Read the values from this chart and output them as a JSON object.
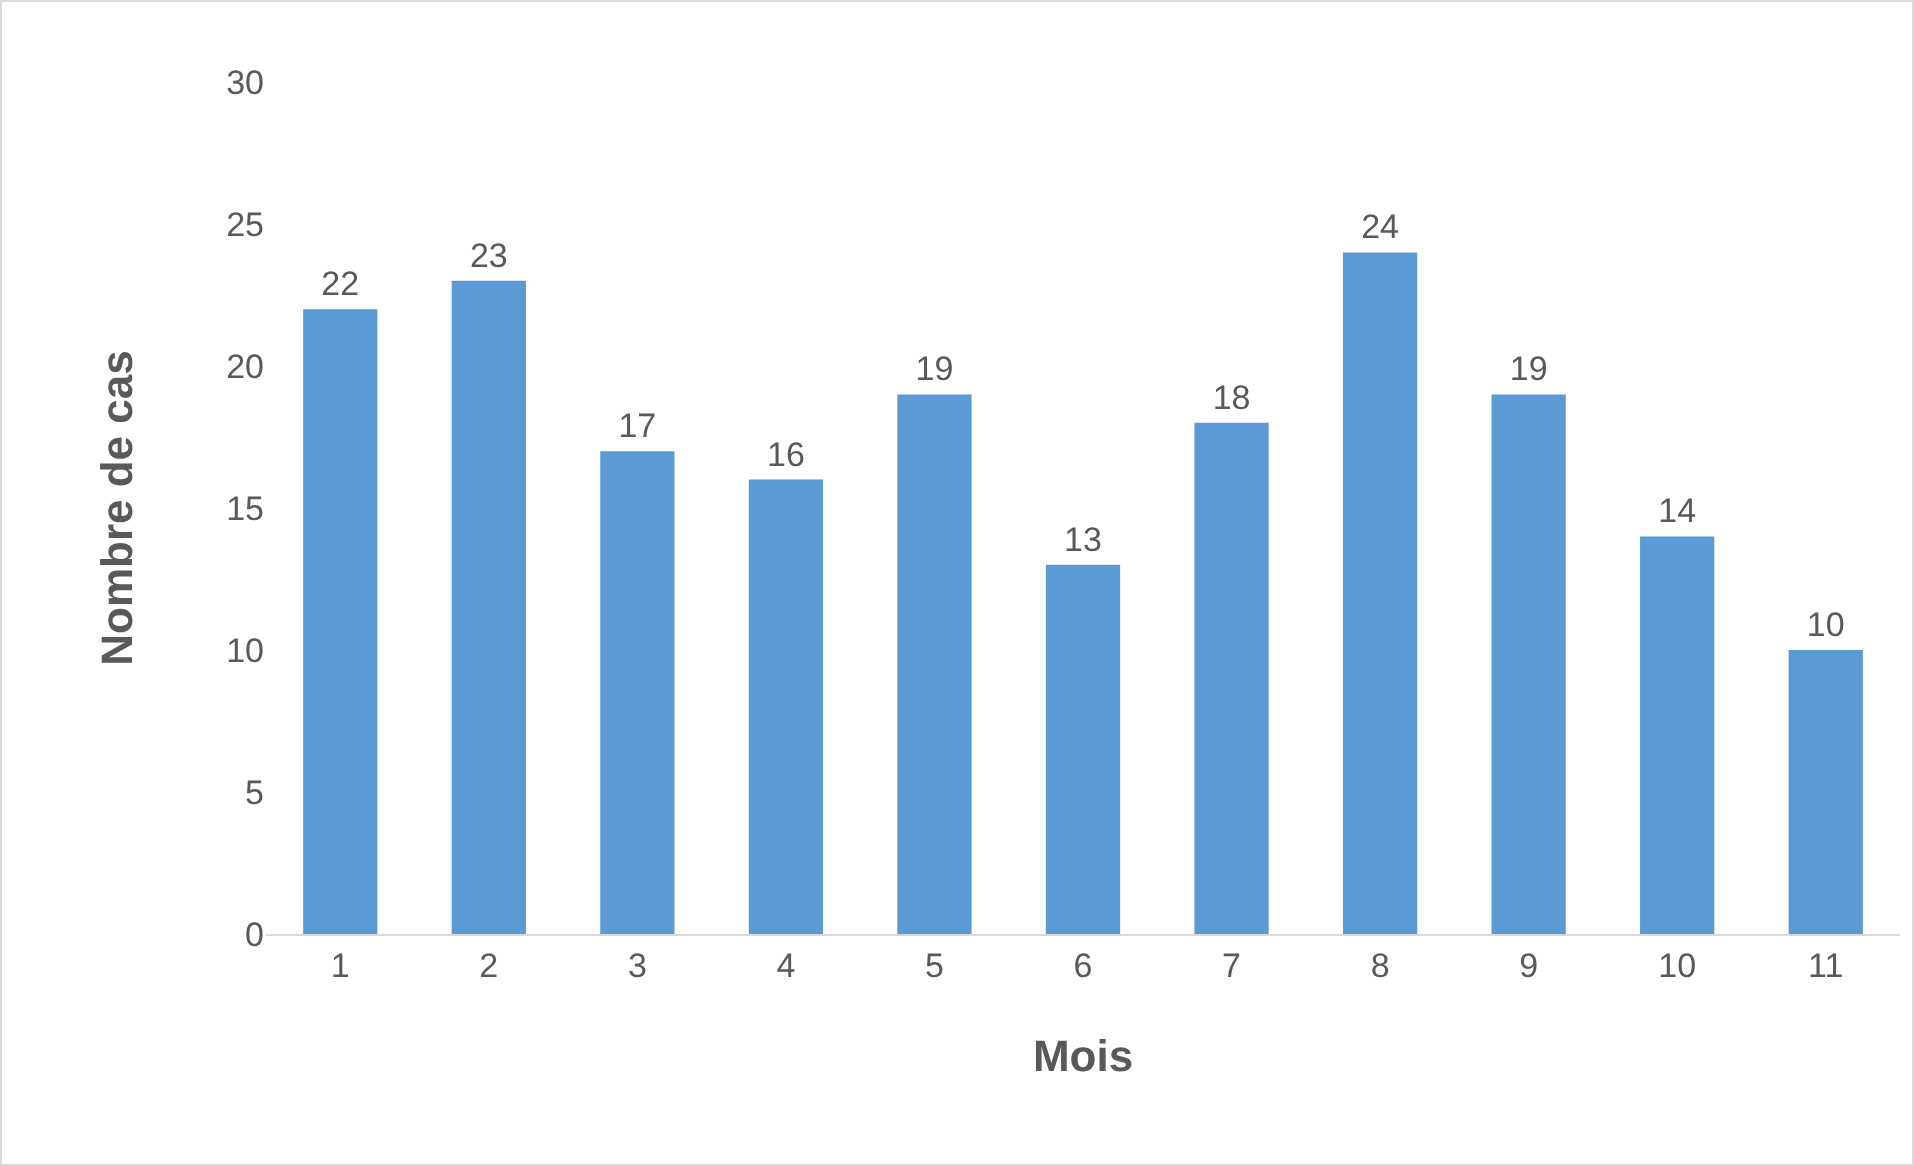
{
  "chart_data": {
    "type": "bar",
    "xlabel": "Mois",
    "ylabel": "Nombre de cas",
    "categories": [
      "1",
      "2",
      "3",
      "4",
      "5",
      "6",
      "7",
      "8",
      "9",
      "10",
      "11"
    ],
    "values": [
      22,
      23,
      17,
      16,
      19,
      13,
      18,
      24,
      19,
      14,
      10
    ],
    "color": "#5b9bd5",
    "ylim": [
      0,
      30
    ],
    "yticks": [
      0,
      5,
      10,
      15,
      20,
      25,
      30
    ],
    "grid": false,
    "data_labels": true
  }
}
